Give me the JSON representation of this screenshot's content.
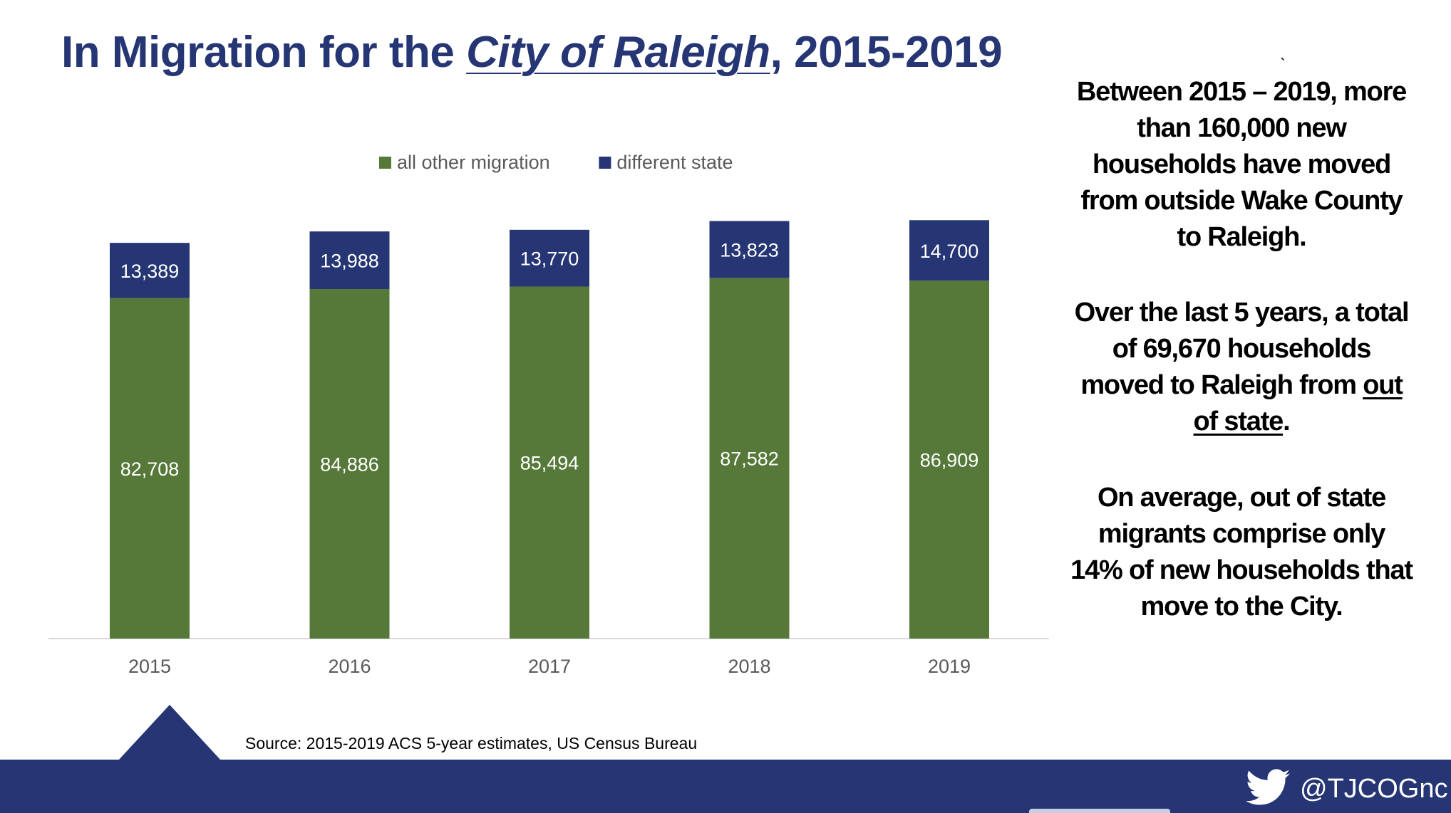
{
  "title": {
    "prefix": "In Migration for the ",
    "city": "City of Raleigh",
    "suffix": ", 2015-2019"
  },
  "chart_data": {
    "type": "bar",
    "stacked": true,
    "categories": [
      "2015",
      "2016",
      "2017",
      "2018",
      "2019"
    ],
    "series": [
      {
        "name": "all other migration",
        "values": [
          82708,
          84886,
          85494,
          87582,
          86909
        ],
        "color": "#56793a"
      },
      {
        "name": "different state",
        "values": [
          13389,
          13988,
          13770,
          13823,
          14700
        ],
        "color": "#263674"
      }
    ],
    "data_labels": {
      "all other migration": [
        "82,708",
        "84,886",
        "85,494",
        "87,582",
        "86,909"
      ],
      "different state": [
        "13,389",
        "13,988",
        "13,770",
        "13,823",
        "14,700"
      ]
    },
    "legend_position": "top",
    "grid": false,
    "ylim": [
      0,
      102000
    ]
  },
  "sidebar": {
    "para1": "Between 2015 – 2019, more than 160,000 new households have moved from outside Wake County to Raleigh.",
    "para2_before": "Over the last 5 years, a total of  69,670 households moved to Raleigh from ",
    "para2_underlined": "out of state",
    "para2_after": ".",
    "para3": "On average, out of state migrants comprise only 14% of new households that move to the City.",
    "stray_mark": "`"
  },
  "source": "Source: 2015-2019 ACS 5-year estimates, US Census Bureau",
  "footer": {
    "twitter_handle": "@TJCOGnc",
    "twitter_icon": "twitter-bird-icon",
    "band_color": "#263674"
  }
}
